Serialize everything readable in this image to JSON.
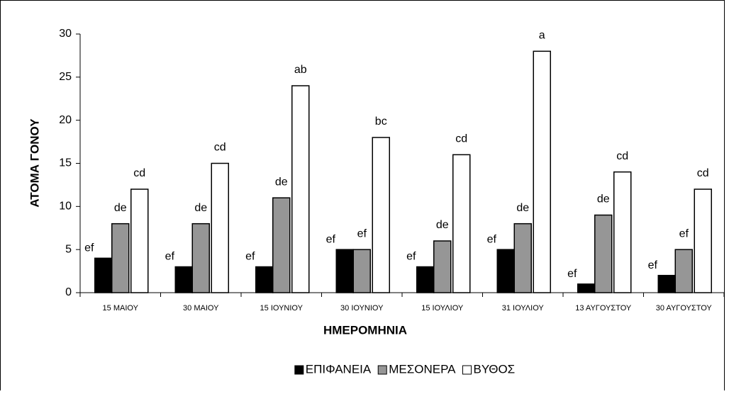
{
  "chart_data": {
    "type": "bar",
    "ylabel": "ΑΤΟΜΑ ΓΟΝΟΥ",
    "xlabel": "ΗΜΕΡΟΜΗΝΙΑ",
    "categories": [
      "15 ΜΑΙΟΥ",
      "30 ΜΑΙΟΥ",
      "15 ΙΟΥΝΙΟΥ",
      "30 ΙΟΥΝΙΟΥ",
      "15 ΙΟΥΛΙΟΥ",
      "31 ΙΟΥΛΙΟΥ",
      "13 ΑΥΓΟΥΣΤΟΥ",
      "30 ΑΥΓΟΥΣΤΟΥ"
    ],
    "series": [
      {
        "name": "ΕΠΙΦΑΝΕΙΑ",
        "color": "#000000",
        "values": [
          4,
          3,
          3,
          5,
          3,
          5,
          1,
          2
        ],
        "letters": [
          "ef",
          "ef",
          "ef",
          "ef",
          "ef",
          "ef",
          "ef",
          "ef"
        ]
      },
      {
        "name": "ΜΕΣΟΝΕΡΑ",
        "color": "#969696",
        "values": [
          8,
          8,
          11,
          5,
          6,
          8,
          9,
          5
        ],
        "letters": [
          "de",
          "de",
          "de",
          "ef",
          "de",
          "de",
          "de",
          "ef"
        ]
      },
      {
        "name": "ΒΥΘΟΣ",
        "color": "#ffffff",
        "values": [
          12,
          15,
          24,
          18,
          16,
          28,
          14,
          12
        ],
        "letters": [
          "cd",
          "cd",
          "ab",
          "bc",
          "cd",
          "a",
          "cd",
          "cd"
        ]
      }
    ],
    "ylim": [
      0,
      30
    ],
    "yticks": [
      0,
      5,
      10,
      15,
      20,
      25,
      30
    ],
    "legend": "bottom"
  }
}
